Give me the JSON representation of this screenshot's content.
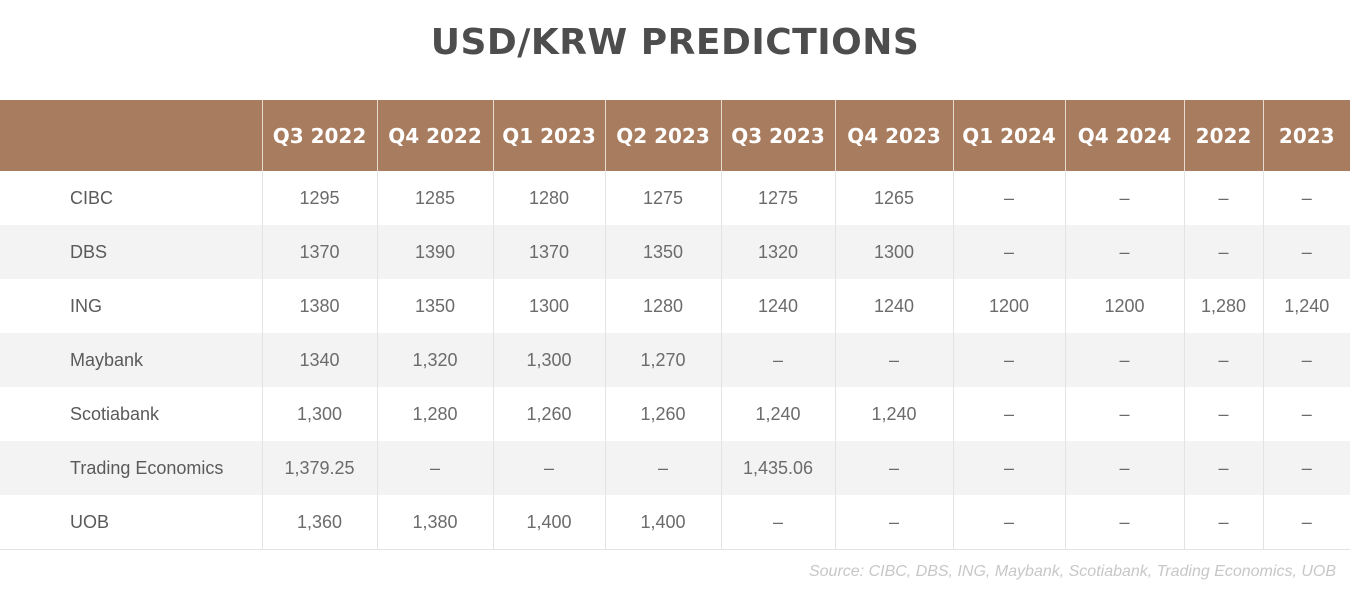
{
  "chart_data": {
    "type": "table",
    "title": "USD/KRW PREDICTIONS",
    "columns": [
      "",
      "Q3 2022",
      "Q4 2022",
      "Q1 2023",
      "Q2 2023",
      "Q3 2023",
      "Q4 2023",
      "Q1 2024",
      "Q4 2024",
      "2022",
      "2023"
    ],
    "rows": [
      {
        "name": "CIBC",
        "values": [
          "1295",
          "1285",
          "1280",
          "1275",
          "1275",
          "1265",
          "–",
          "–",
          "–",
          "–"
        ]
      },
      {
        "name": "DBS",
        "values": [
          "1370",
          "1390",
          "1370",
          "1350",
          "1320",
          "1300",
          "–",
          "–",
          "–",
          "–"
        ]
      },
      {
        "name": "ING",
        "values": [
          "1380",
          "1350",
          "1300",
          "1280",
          "1240",
          "1240",
          "1200",
          "1200",
          "1,280",
          "1,240"
        ]
      },
      {
        "name": "Maybank",
        "values": [
          "1340",
          "1,320",
          "1,300",
          "1,270",
          "–",
          "–",
          "–",
          "–",
          "–",
          "–"
        ]
      },
      {
        "name": "Scotiabank",
        "values": [
          "1,300",
          "1,280",
          "1,260",
          "1,260",
          "1,240",
          "1,240",
          "–",
          "–",
          "–",
          "–"
        ]
      },
      {
        "name": "Trading Economics",
        "values": [
          "1,379.25",
          "–",
          "–",
          "–",
          "1,435.06",
          "–",
          "–",
          "–",
          "–",
          "–"
        ]
      },
      {
        "name": "UOB",
        "values": [
          "1,360",
          "1,380",
          "1,400",
          "1,400",
          "–",
          "–",
          "–",
          "–",
          "–",
          "–"
        ]
      }
    ],
    "source": "Source: CIBC, DBS, ING, Maybank, Scotiabank, Trading Economics, UOB"
  },
  "colors": {
    "header_bg": "#a87c5f",
    "header_text": "#ffffff",
    "title_text": "#4d4d4d",
    "zebra_row": "#f3f3f3"
  }
}
